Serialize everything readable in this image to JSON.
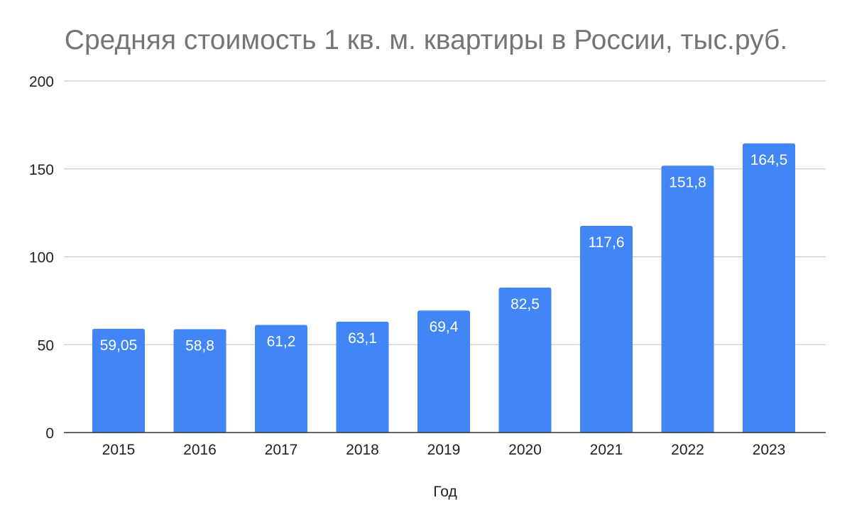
{
  "chart_data": {
    "type": "bar",
    "title": "Средняя стоимость 1 кв. м. квартиры в России, тыс.руб.",
    "xlabel": "Год",
    "ylabel": "",
    "categories": [
      "2015",
      "2016",
      "2017",
      "2018",
      "2019",
      "2020",
      "2021",
      "2022",
      "2023"
    ],
    "values": [
      59.05,
      58.8,
      61.2,
      63.1,
      69.4,
      82.5,
      117.6,
      151.8,
      164.5
    ],
    "data_labels": [
      "59,05",
      "58,8",
      "61,2",
      "63,1",
      "69,4",
      "82,5",
      "117,6",
      "151,8",
      "164,5"
    ],
    "yticks": [
      "0",
      "50",
      "100",
      "150",
      "200"
    ],
    "ylim": [
      0,
      200
    ],
    "grid": true,
    "legend": "none"
  },
  "colors": {
    "bar": "#4285f4",
    "grid": "#cccccc",
    "axis": "#333333",
    "title": "#757575"
  }
}
